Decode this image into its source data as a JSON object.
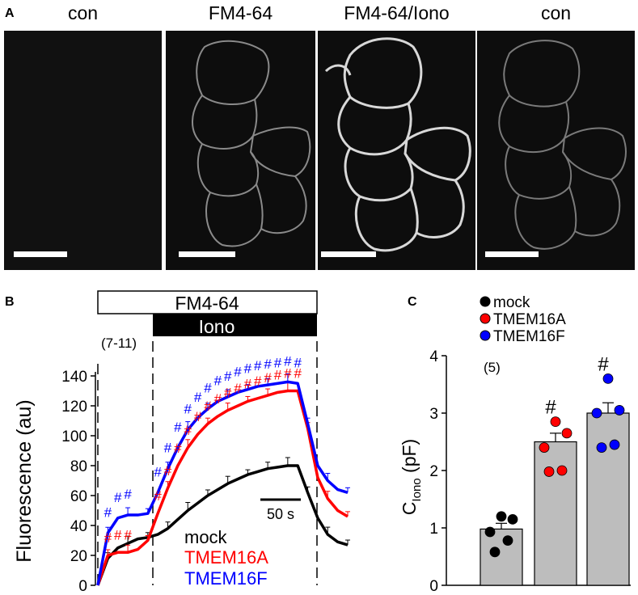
{
  "panel_a": {
    "label": "A",
    "images": [
      {
        "title": "con"
      },
      {
        "title": "FM4-64"
      },
      {
        "title": "FM4-64/Iono"
      },
      {
        "title": "con"
      }
    ]
  },
  "panel_b": {
    "label": "B",
    "bar_fm": "FM4-64",
    "bar_iono": "Iono",
    "n_label": "(7-11)",
    "scale_label": "50 s",
    "hash": "#"
  },
  "panel_c": {
    "label": "C",
    "n_label": "(5)",
    "hash": "#"
  },
  "chart_data": [
    {
      "type": "line",
      "ylabel": "Fluorescence (au)",
      "ylim": [
        0,
        140
      ],
      "yticks": [
        0,
        20,
        40,
        60,
        80,
        100,
        120,
        140
      ],
      "x": [
        0,
        2,
        4,
        6,
        8,
        10,
        12,
        14,
        16,
        18,
        20,
        22,
        24,
        26,
        28,
        30,
        32,
        34,
        36,
        38,
        40,
        42,
        44,
        46,
        48,
        50
      ],
      "series": [
        {
          "name": "mock",
          "color": "#000000",
          "values": [
            0,
            18,
            25,
            28,
            31,
            32,
            34,
            38,
            44,
            50,
            55,
            60,
            64,
            68,
            71,
            74,
            76,
            78,
            79,
            80,
            80,
            62,
            45,
            34,
            29,
            27
          ]
        },
        {
          "name": "TMEM16A",
          "color": "#ff0000",
          "values": [
            0,
            20,
            22,
            22,
            24,
            30,
            48,
            65,
            80,
            92,
            101,
            108,
            113,
            117,
            120,
            123,
            125,
            127,
            129,
            130,
            130,
            105,
            72,
            58,
            50,
            46
          ]
        },
        {
          "name": "TMEM16F",
          "color": "#0000ff",
          "values": [
            0,
            35,
            45,
            47,
            47,
            48,
            62,
            78,
            92,
            104,
            112,
            118,
            123,
            126,
            129,
            131,
            133,
            134,
            135,
            136,
            135,
            108,
            80,
            70,
            64,
            62
          ]
        }
      ],
      "sig_series": [
        "TMEM16A",
        "TMEM16F"
      ]
    },
    {
      "type": "bar",
      "ylabel": "C",
      "ylabel_sub": "Iono",
      "ylabel_unit": " (pF)",
      "ylim": [
        0,
        4
      ],
      "yticks": [
        0,
        1,
        2,
        3,
        4
      ],
      "categories": [
        "mock",
        "TMEM16A",
        "TMEM16F"
      ],
      "colors": [
        "#000000",
        "#ff0000",
        "#0000ff"
      ],
      "values": [
        0.98,
        2.5,
        3.0
      ],
      "errors": [
        0.1,
        0.15,
        0.18
      ],
      "points": [
        [
          1.2,
          1.15,
          0.93,
          0.78,
          0.58
        ],
        [
          2.85,
          2.65,
          2.4,
          2.0,
          1.98
        ],
        [
          3.6,
          3.05,
          3.0,
          2.45,
          2.4
        ]
      ],
      "significant": [
        false,
        true,
        true
      ]
    }
  ]
}
